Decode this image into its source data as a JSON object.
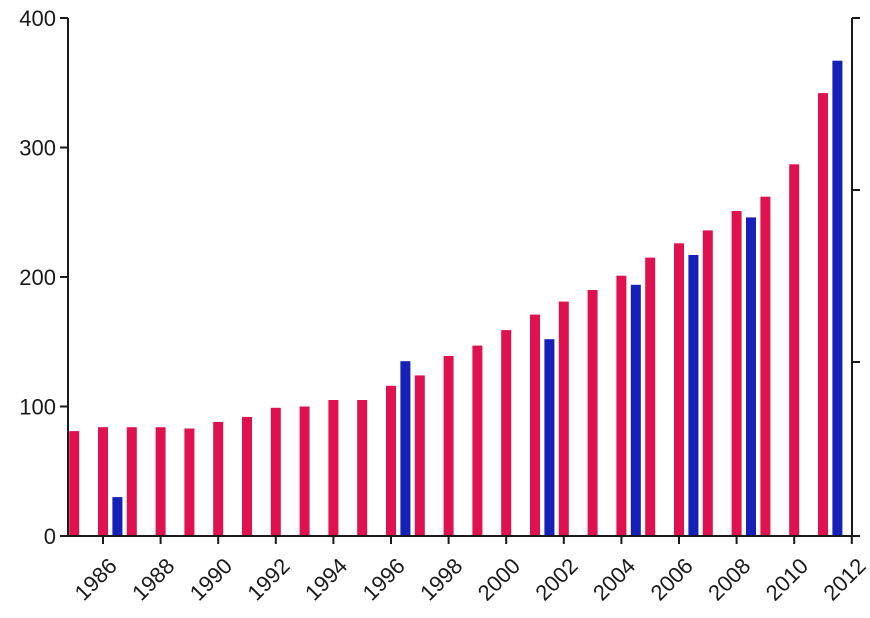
{
  "chart_data": {
    "type": "bar",
    "title": "",
    "xlabel": "",
    "ylabel": "",
    "ylim": [
      0,
      400
    ],
    "yticks": [
      0,
      100,
      200,
      300,
      400
    ],
    "xtick_labels": [
      "1986",
      "1988",
      "1990",
      "1992",
      "1994",
      "1996",
      "1998",
      "2000",
      "2002",
      "2004",
      "2006",
      "2008",
      "2010",
      "2012"
    ],
    "grid": false,
    "legend": "none",
    "right_axis": {
      "ticks_shown": true,
      "labels": []
    },
    "colors": {
      "series_pink": "#e0114f",
      "series_blue": "#1420b8",
      "axis": "#1a1a1a"
    },
    "series": [
      {
        "color": "series_pink",
        "x": [
          1985,
          1986,
          1987,
          1988,
          1989,
          1990,
          1991,
          1992,
          1993,
          1994,
          1995,
          1996,
          1997,
          1998,
          1999,
          2000,
          2001,
          2002,
          2003,
          2004,
          2005,
          2006,
          2007,
          2008,
          2009,
          2010,
          2011
        ],
        "values": [
          81,
          84,
          84,
          84,
          83,
          88,
          92,
          99,
          100,
          105,
          105,
          116,
          124,
          139,
          147,
          159,
          171,
          181,
          190,
          201,
          215,
          226,
          236,
          251,
          262,
          287,
          342
        ]
      },
      {
        "color": "series_blue",
        "x": [
          1986.5,
          1996.5,
          2001.5,
          2004.5,
          2006.5,
          2008.5,
          2011.5
        ],
        "values": [
          30,
          135,
          152,
          194,
          217,
          246,
          367
        ]
      }
    ]
  }
}
